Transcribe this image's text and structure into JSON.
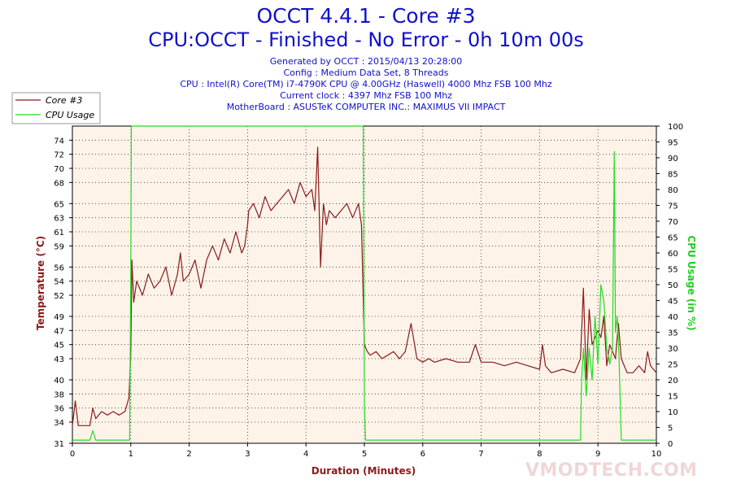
{
  "title": "OCCT 4.4.1 - Core #3",
  "subtitle": "CPU:OCCT - Finished - No Error - 0h 10m 00s",
  "info_lines": [
    "Generated by OCCT : 2015/04/13 20:28:00",
    "Config : Medium Data Set, 8 Threads",
    "CPU : Intel(R) Core(TM) i7-4790K CPU @ 4.00GHz (Haswell) 4000 Mhz FSB 100 Mhz",
    "Current clock : 4397 Mhz FSB 100 Mhz",
    "MotherBoard : ASUSTeK COMPUTER INC.: MAXIMUS VII IMPACT"
  ],
  "watermark": "VMODTECH.COM",
  "colors": {
    "temperature": "#8b1a1a",
    "cpu_usage": "#22dd22",
    "plot_background": "#fdf3e9",
    "text": "#1010cc"
  },
  "chart_data": {
    "type": "line",
    "xlabel": "Duration (Minutes)",
    "ylabel": "Temperature (°C)",
    "y2label": "CPU Usage (in %)",
    "xlim": [
      0,
      10
    ],
    "ylim": [
      31,
      76
    ],
    "y2lim": [
      0,
      100
    ],
    "x_ticks": [
      "0",
      "1",
      "2",
      "3",
      "4",
      "5",
      "6",
      "7",
      "8",
      "9",
      "10"
    ],
    "y_ticks": [
      "31",
      "34",
      "36",
      "38",
      "40",
      "43",
      "45",
      "47",
      "49",
      "52",
      "54",
      "56",
      "59",
      "61",
      "63",
      "65",
      "68",
      "70",
      "72",
      "74"
    ],
    "y2_ticks": [
      "0",
      "5",
      "10",
      "15",
      "20",
      "25",
      "30",
      "35",
      "40",
      "45",
      "50",
      "55",
      "60",
      "65",
      "70",
      "75",
      "80",
      "85",
      "90",
      "95",
      "100"
    ],
    "grid": true,
    "legend_position": "top-left",
    "series": [
      {
        "name": "Core #3",
        "axis": "left",
        "x": [
          0,
          0.05,
          0.1,
          0.2,
          0.3,
          0.35,
          0.4,
          0.5,
          0.6,
          0.7,
          0.8,
          0.9,
          0.97,
          1.0,
          1.02,
          1.05,
          1.1,
          1.2,
          1.3,
          1.4,
          1.5,
          1.6,
          1.7,
          1.8,
          1.85,
          1.9,
          2.0,
          2.1,
          2.2,
          2.3,
          2.4,
          2.5,
          2.6,
          2.7,
          2.8,
          2.9,
          2.95,
          3.0,
          3.02,
          3.1,
          3.2,
          3.3,
          3.4,
          3.5,
          3.6,
          3.7,
          3.8,
          3.9,
          4.0,
          4.1,
          4.15,
          4.2,
          4.25,
          4.3,
          4.35,
          4.4,
          4.5,
          4.6,
          4.7,
          4.8,
          4.9,
          4.95,
          5.0,
          5.05,
          5.1,
          5.2,
          5.3,
          5.4,
          5.5,
          5.6,
          5.7,
          5.8,
          5.9,
          6.0,
          6.1,
          6.2,
          6.4,
          6.6,
          6.8,
          6.9,
          7.0,
          7.2,
          7.4,
          7.6,
          7.8,
          8.0,
          8.05,
          8.1,
          8.2,
          8.4,
          8.6,
          8.7,
          8.75,
          8.8,
          8.85,
          8.9,
          9.0,
          9.05,
          9.1,
          9.15,
          9.2,
          9.3,
          9.35,
          9.4,
          9.5,
          9.6,
          9.7,
          9.8,
          9.85,
          9.9,
          10.0
        ],
        "values": [
          33.5,
          37,
          33.5,
          33.5,
          33.5,
          36,
          34.5,
          35.5,
          35,
          35.5,
          35,
          35.5,
          37.5,
          44,
          57,
          51,
          54,
          52,
          55,
          53,
          54,
          56,
          52,
          55,
          58,
          54,
          55,
          57,
          53,
          57,
          59,
          57,
          60,
          58,
          61,
          58,
          59,
          62,
          64,
          65,
          63,
          66,
          64,
          65,
          66,
          67,
          65,
          68,
          66,
          67,
          64,
          73,
          56,
          65,
          62,
          64,
          63,
          64,
          65,
          63,
          65,
          62,
          45,
          44,
          43.5,
          44,
          43,
          43.5,
          44,
          43,
          44,
          48,
          43,
          42.5,
          43,
          42.5,
          43,
          42.5,
          42.5,
          45,
          42.5,
          42.5,
          42,
          42.5,
          42,
          41.5,
          45,
          42,
          41,
          41.5,
          41,
          43,
          53,
          40,
          50,
          45,
          47,
          46,
          49,
          42,
          45,
          43,
          48,
          43,
          41,
          41,
          42,
          41,
          44,
          42,
          41
        ],
        "color": "#8b1a1a"
      },
      {
        "name": "CPU Usage",
        "axis": "right",
        "x": [
          0,
          0.3,
          0.35,
          0.4,
          0.5,
          0.98,
          1.0,
          1.01,
          2.0,
          3.0,
          4.0,
          4.98,
          5.0,
          5.02,
          5.5,
          6.0,
          7.0,
          7.5,
          8.0,
          8.2,
          8.5,
          8.65,
          8.7,
          8.72,
          8.75,
          8.8,
          8.85,
          8.9,
          8.95,
          9.0,
          9.05,
          9.1,
          9.15,
          9.2,
          9.25,
          9.28,
          9.3,
          9.33,
          9.36,
          9.4,
          9.45,
          9.5,
          10.0
        ],
        "values": [
          1,
          1,
          4,
          1,
          1,
          1,
          55,
          100,
          100,
          100,
          100,
          100,
          12,
          1,
          1,
          1,
          1,
          1,
          1,
          1,
          1,
          1,
          1,
          20,
          30,
          15,
          30,
          20,
          40,
          25,
          50,
          45,
          30,
          25,
          30,
          92,
          35,
          40,
          28,
          1,
          1,
          1,
          1
        ],
        "color": "#22dd22"
      }
    ]
  }
}
